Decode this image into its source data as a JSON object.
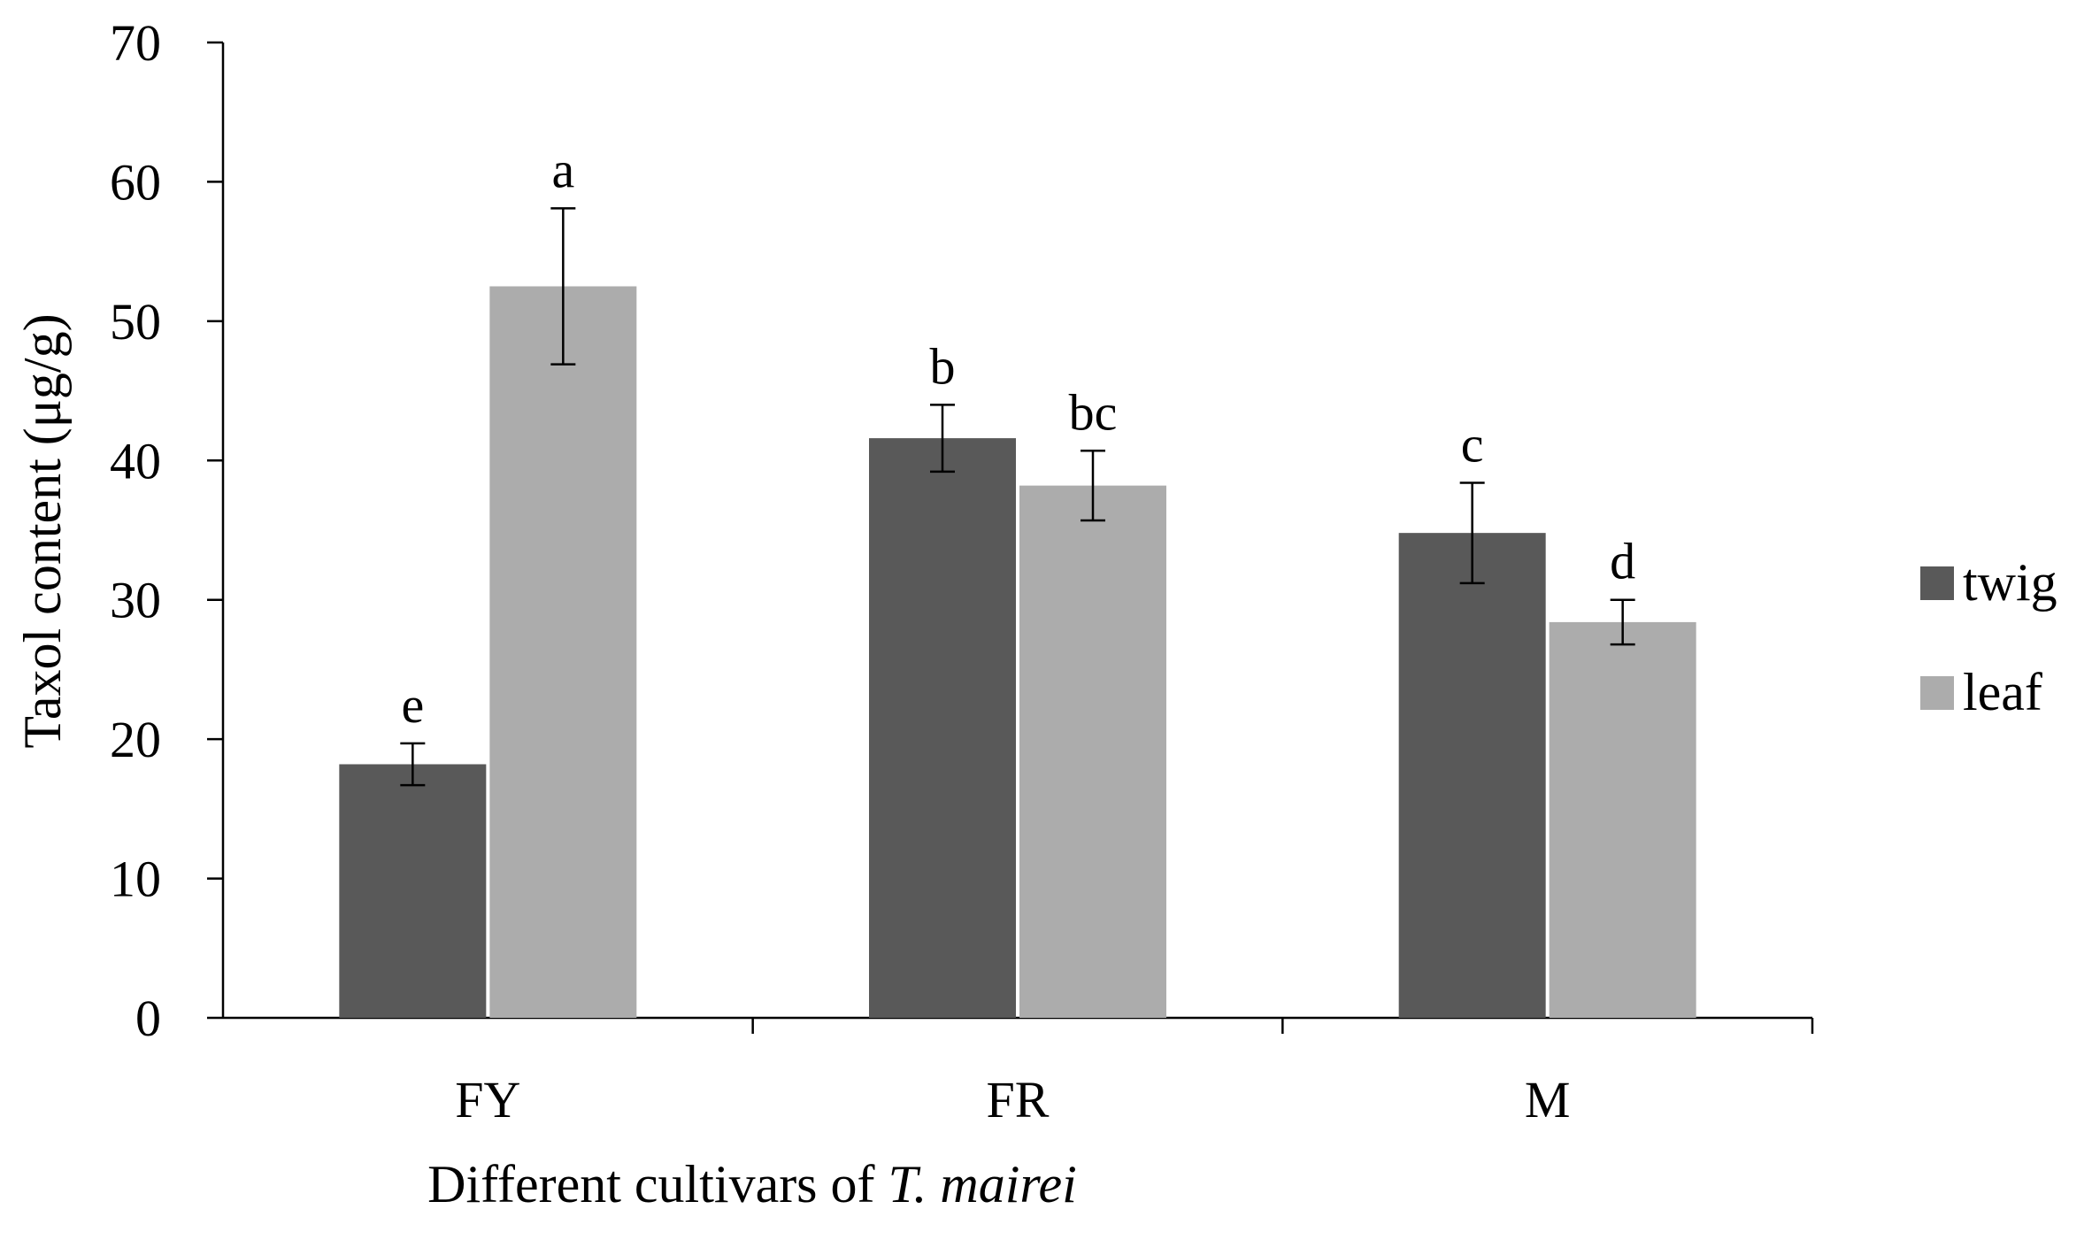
{
  "chart_data": {
    "type": "bar",
    "title": "",
    "xlabel": "Different cultivars of ",
    "xlabel_italic": "T. mairei",
    "ylabel": "Taxol content (μg/g)",
    "ylim": [
      0,
      70
    ],
    "yticks": [
      0,
      10,
      20,
      30,
      40,
      50,
      60,
      70
    ],
    "grid": false,
    "legend_position": "right",
    "categories": [
      "FY",
      "FR",
      "M"
    ],
    "series": [
      {
        "name": "twig",
        "color": "#595959",
        "values": [
          18.2,
          41.6,
          34.8
        ],
        "errors": [
          1.5,
          2.4,
          3.6
        ],
        "labels": [
          "e",
          "b",
          "c"
        ]
      },
      {
        "name": "leaf",
        "color": "#acacac",
        "values": [
          52.5,
          38.2,
          28.4
        ],
        "errors": [
          5.6,
          2.5,
          1.6
        ],
        "labels": [
          "a",
          "bc",
          "d"
        ]
      }
    ]
  }
}
